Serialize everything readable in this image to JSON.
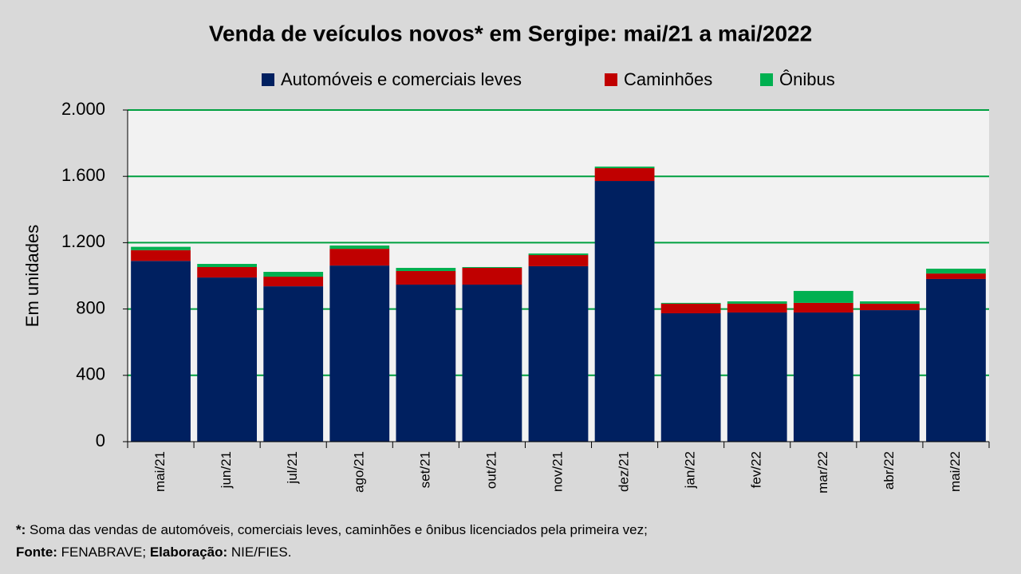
{
  "chart_data": {
    "type": "stacked_bar",
    "title": "Venda de veículos novos* em Sergipe: mai/21 a mai/2022",
    "y_label": "Em unidades",
    "categories": [
      "mai/21",
      "jun/21",
      "jul/21",
      "ago/21",
      "set/21",
      "out/21",
      "nov/21",
      "dez/21",
      "jan/22",
      "fev/22",
      "mar/22",
      "abr/22",
      "mai/22"
    ],
    "series": [
      {
        "name": "Automóveis e comerciais leves",
        "color": "#002060",
        "values": [
          1090,
          990,
          937,
          1062,
          947,
          947,
          1058,
          1572,
          774,
          779,
          779,
          793,
          981
        ]
      },
      {
        "name": "Caminhões",
        "color": "#c00000",
        "values": [
          65,
          63,
          58,
          101,
          82,
          101,
          67,
          77,
          58,
          53,
          58,
          39,
          33
        ]
      },
      {
        "name": "Ônibus",
        "color": "#00b050",
        "values": [
          20,
          19,
          29,
          20,
          19,
          5,
          10,
          10,
          5,
          14,
          72,
          14,
          29
        ]
      }
    ],
    "ylim": [
      0,
      2000
    ],
    "yticks": [
      0,
      400,
      800,
      {
        "value": 1200,
        "label": "1.200"
      },
      {
        "value": 1600,
        "label": "1.600"
      },
      {
        "value": 2000,
        "label": "2.000"
      }
    ],
    "grid": true,
    "grid_color": "#00a040",
    "legend": "top"
  },
  "footnote": {
    "marker": "*:",
    "text": "Soma das vendas de automóveis, comerciais leves, caminhões e ônibus licenciados pela primeira vez;"
  },
  "source": {
    "label": "Fonte:",
    "value": "FENABRAVE;",
    "credit_label": "Elaboração:",
    "credit_value": "NIE/FIES."
  }
}
